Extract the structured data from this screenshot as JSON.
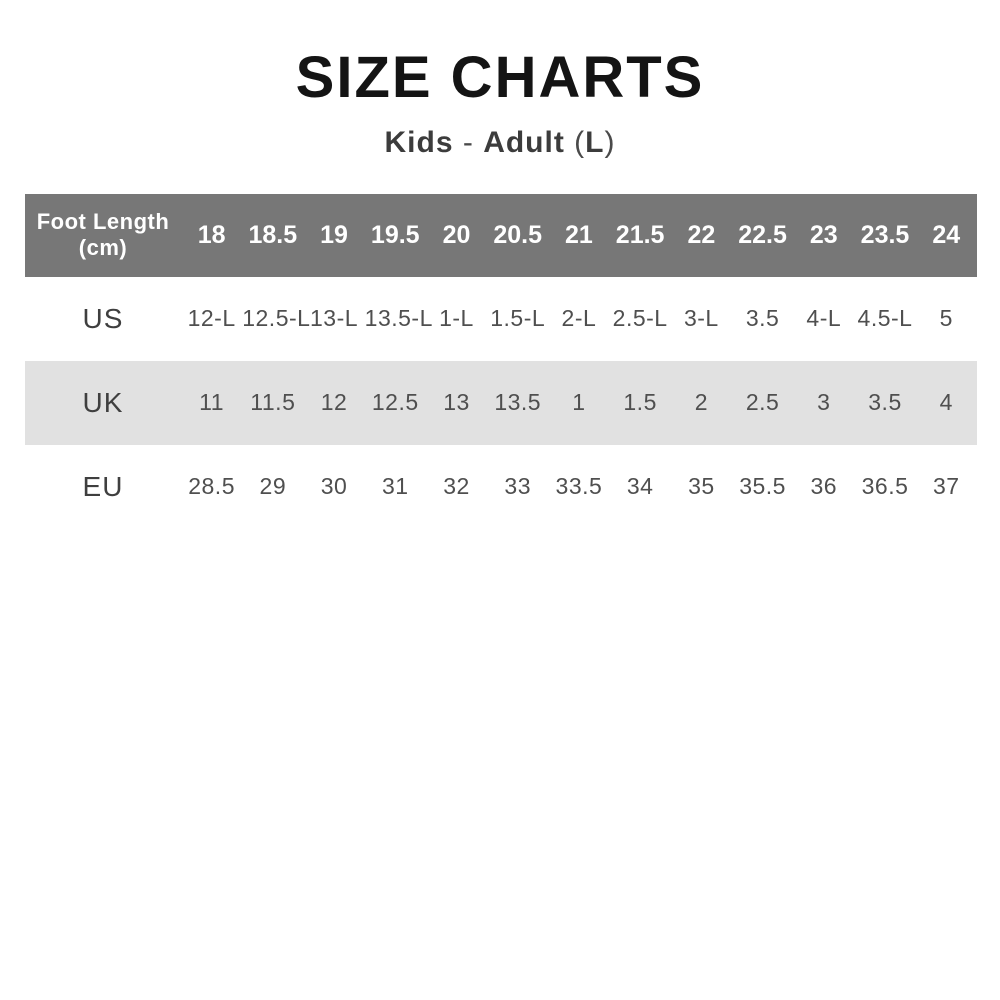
{
  "page": {
    "title": "SIZE CHARTS"
  },
  "subtitle": {
    "segments": [
      {
        "text": "Kids"
      },
      {
        "text": " - "
      },
      {
        "text": "Adult"
      },
      {
        "text": " ("
      },
      {
        "text": "L"
      },
      {
        "text": ")"
      }
    ]
  },
  "table": {
    "corner": {
      "line1": "Foot Length",
      "line2": "(cm)"
    },
    "columns": [
      "18",
      "18.5",
      "19",
      "19.5",
      "20",
      "20.5",
      "21",
      "21.5",
      "22",
      "22.5",
      "23",
      "23.5",
      "24"
    ],
    "rows": [
      {
        "label": "US",
        "values": [
          "12-L",
          "12.5-L",
          "13-L",
          "13.5-L",
          "1-L",
          "1.5-L",
          "2-L",
          "2.5-L",
          "3-L",
          "3.5",
          "4-L",
          "4.5-L",
          "5"
        ]
      },
      {
        "label": "UK",
        "values": [
          "11",
          "11.5",
          "12",
          "12.5",
          "13",
          "13.5",
          "1",
          "1.5",
          "2",
          "2.5",
          "3",
          "3.5",
          "4"
        ]
      },
      {
        "label": "EU",
        "values": [
          "28.5",
          "29",
          "30",
          "31",
          "32",
          "33",
          "33.5",
          "34",
          "35",
          "35.5",
          "36",
          "36.5",
          "37"
        ]
      }
    ]
  },
  "colors": {
    "header_bg": "#777777",
    "header_text": "#ffffff",
    "stripe_bg": "#e1e1e1",
    "title_text": "#141414",
    "subtitle_text": "#3c3c3c",
    "cell_text": "#4f4f4f"
  },
  "chart_data": {
    "type": "table",
    "title": "SIZE CHARTS",
    "subtitle": "Kids - Adult (L)",
    "columns": [
      "Foot Length (cm)",
      "18",
      "18.5",
      "19",
      "19.5",
      "20",
      "20.5",
      "21",
      "21.5",
      "22",
      "22.5",
      "23",
      "23.5",
      "24"
    ],
    "rows": [
      [
        "US",
        "12-L",
        "12.5-L",
        "13-L",
        "13.5-L",
        "1-L",
        "1.5-L",
        "2-L",
        "2.5-L",
        "3-L",
        "3.5",
        "4-L",
        "4.5-L",
        "5"
      ],
      [
        "UK",
        "11",
        "11.5",
        "12",
        "12.5",
        "13",
        "13.5",
        "1",
        "1.5",
        "2",
        "2.5",
        "3",
        "3.5",
        "4"
      ],
      [
        "EU",
        "28.5",
        "29",
        "30",
        "31",
        "32",
        "33",
        "33.5",
        "34",
        "35",
        "35.5",
        "36",
        "36.5",
        "37"
      ]
    ],
    "layout": {
      "striped_row": "UK",
      "header_style": "dark-gray-white-text"
    }
  }
}
